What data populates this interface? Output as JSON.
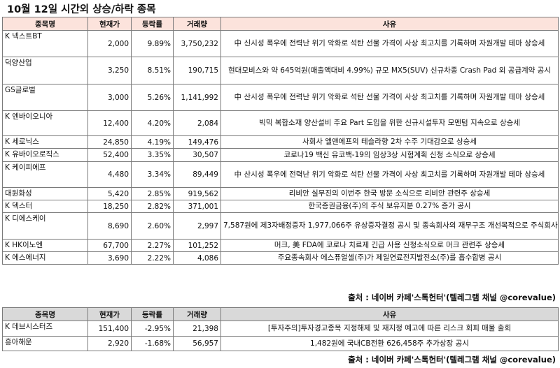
{
  "title": "10월 12일  시간외 상승/하락 종목",
  "headers": {
    "name": "종목명",
    "price": "현재가",
    "rate": "등락률",
    "volume": "거래량",
    "reason": "사유"
  },
  "lower_headers": {
    "name": "종목명",
    "price": "현재가",
    "rate": "등락률",
    "volume": "거래량",
    "reason": "사유"
  },
  "rise_rows": [
    {
      "name": "K 넥스트BT",
      "price": "2,000",
      "rate": "9.89%",
      "volume": "3,750,232",
      "reason": "中 신시성 폭우에 전력난 위기 악화로 석탄 선물 가격이 사상 최고치를 기록하며 자원개발 테마 상승세"
    },
    {
      "name": "덕양산업",
      "price": "3,250",
      "rate": "8.51%",
      "volume": "190,715",
      "reason": "현대모비스와 약 645억원(매출액대비 4.99%) 규모 MX5(SUV) 신규차종 Crash Pad 외 공급계약 공시"
    },
    {
      "name": "GS글로벌",
      "price": "3,000",
      "rate": "5.26%",
      "volume": "1,141,992",
      "reason": "中 산시성 폭우에 전력난 위기 악화로 석탄 선물 가격이 사상 최고치를 기록하며 자원개발 테마 상승세"
    },
    {
      "name": "K 엔바이오니아",
      "price": "12,400",
      "rate": "4.20%",
      "volume": "2,084",
      "reason": "빅믹 복합소재 양산설비 주요 Part 도입을 위한 신규시설투자 모멘텀 지속으로 상승세"
    },
    {
      "name": "K 세로닉스",
      "price": "24,850",
      "rate": "4.19%",
      "volume": "149,476",
      "reason": "사회사 엘앤에프의 테슬라향 2차 수주 기대감으로 상승세"
    },
    {
      "name": "K 유바이오로직스",
      "price": "52,400",
      "rate": "3.35%",
      "volume": "30,507",
      "reason": "코로나19 백신 유코백-19의 임상3상 시험계획 신청 소식으로 상승세"
    },
    {
      "name": "K 케이피에프",
      "price": "4,480",
      "rate": "3.34%",
      "volume": "89,449",
      "reason": "中 산시성 폭우에 전력난 위기 악화로 석탄 선물 가격이 사상 최고치를 기록하며 자원개발 테마 상승세"
    },
    {
      "name": "대원화성",
      "price": "5,420",
      "rate": "2.85%",
      "volume": "919,562",
      "reason": "리비안 실무진의 이번주 한국 방문 소식으로 리비안 관련주 상승세"
    },
    {
      "name": "K 덱스터",
      "price": "18,250",
      "rate": "2.82%",
      "volume": "371,001",
      "reason": "한국증권금융(주)의 주식 보유지분 0.27% 증가 공시"
    },
    {
      "name": "K 디에스케이",
      "price": "8,690",
      "rate": "2.60%",
      "volume": "2,997",
      "reason": "7,587원에 제3자배정증자 1,977,066주 유상증자결정 공시 및 종속회사의 재무구조 개선목적으로 주식회사 프로톡스 5,782,150주(약 289억원) 추가 취득결정 공시"
    },
    {
      "name": "K HK이노엔",
      "price": "67,700",
      "rate": "2.27%",
      "volume": "101,252",
      "reason": "머크, 美 FDA에 코로나 치료제 긴급 사용 신청소식으로 머크 관련주 상승세"
    },
    {
      "name": "K 에스에너지",
      "price": "3,690",
      "rate": "2.22%",
      "volume": "4,086",
      "reason": "주요종속회사 에스퓨얼셀(주)가 제일연료전지발전소(주)를 흡수합병 공시"
    }
  ],
  "fall_rows": [
    {
      "name": "K 데브시스터즈",
      "price": "151,400",
      "rate": "-2.95%",
      "volume": "21,398",
      "reason": "[투자주의]투자경고종목 지정해제 및 재지정 예고에 따른 리스크 회피 매물 출회"
    },
    {
      "name": "흥아해운",
      "price": "2,920",
      "rate": "-1.68%",
      "volume": "56,957",
      "reason": "1,482원에 국내CB전환 626,458주 추가상장 공시"
    }
  ],
  "source_top": "출처 : 네이버 카페'스톡헌터'(텔레그램 채널 @corevalue)",
  "source_bottom": "출처 : 네이버 카페'스톡헌터'(텔레그램 채널 @corevalue)"
}
